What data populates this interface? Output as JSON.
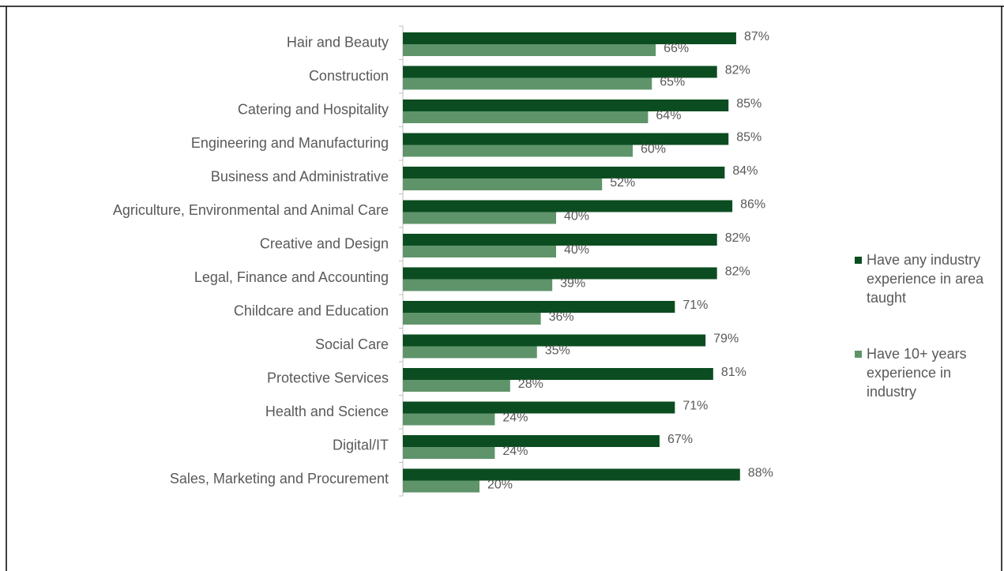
{
  "chart_data": {
    "type": "bar",
    "orientation": "horizontal",
    "categories": [
      "Hair and Beauty",
      "Construction",
      "Catering and Hospitality",
      "Engineering and Manufacturing",
      "Business and Administrative",
      "Agriculture, Environmental and Animal Care",
      "Creative and Design",
      "Legal, Finance and Accounting",
      "Childcare and Education",
      "Social Care",
      "Protective Services",
      "Health and Science",
      "Digital/IT",
      "Sales, Marketing and Procurement"
    ],
    "series": [
      {
        "name": "Have any industry experience in area taught",
        "legend_lines": [
          "Have any industry",
          "experience in area",
          "taught"
        ],
        "color": "#0b4d20",
        "values": [
          87,
          82,
          85,
          85,
          84,
          86,
          82,
          82,
          71,
          79,
          81,
          71,
          67,
          88
        ],
        "labels": [
          "87%",
          "82%",
          "85%",
          "85%",
          "84%",
          "86%",
          "82%",
          "82%",
          "71%",
          "79%",
          "81%",
          "71%",
          "67%",
          "88%"
        ]
      },
      {
        "name": "Have 10+ years experience in industry",
        "legend_lines": [
          "Have 10+ years",
          "experience in",
          "industry"
        ],
        "color": "#5f946b",
        "values": [
          66,
          65,
          64,
          60,
          52,
          40,
          40,
          39,
          36,
          35,
          28,
          24,
          24,
          20
        ],
        "labels": [
          "66%",
          "65%",
          "64%",
          "60%",
          "52%",
          "40%",
          "40%",
          "39%",
          "36%",
          "35%",
          "28%",
          "24%",
          "24%",
          "20%"
        ]
      }
    ],
    "xlim": [
      0,
      100
    ],
    "xlabel": "",
    "ylabel": "",
    "grid": false,
    "legend_position": "right",
    "value_format": "percent"
  }
}
